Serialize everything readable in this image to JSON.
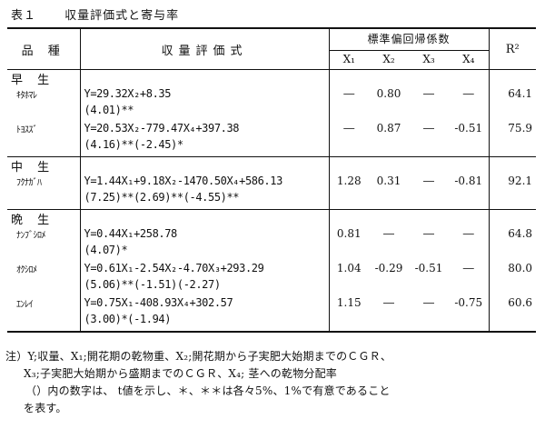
{
  "caption": {
    "number": "表１",
    "title": "収量評価式と寄与率"
  },
  "header": {
    "cultivar": "品 種",
    "equation": "収量評価式",
    "group": "標準偏回帰係数",
    "x_cols": [
      "X₁",
      "X₂",
      "X₃",
      "X₄"
    ],
    "r2": "R²"
  },
  "sections": [
    {
      "label": "早 生",
      "rows": [
        {
          "cultivar": "ｷﾀﾎﾏﾚ",
          "equation": "Y=29.32X₂+8.35",
          "tvals": "(4.01)**",
          "x1": "―",
          "x2": "0.80",
          "x3": "―",
          "x4": "―",
          "r2": "64.1"
        },
        {
          "cultivar": "ﾄﾖｽｽﾞ",
          "equation": "Y=20.53X₂-779.47X₄+397.38",
          "tvals": "(4.16)**(-2.45)*",
          "x1": "―",
          "x2": "0.87",
          "x3": "―",
          "x4": "-0.51",
          "r2": "75.9"
        }
      ]
    },
    {
      "label": "中 生",
      "rows": [
        {
          "cultivar": "ﾌｸﾅｶﾞﾊ",
          "equation": "Y=1.44X₁+9.18X₂-1470.50X₄+586.13",
          "tvals": "(7.25)**(2.69)**(-4.55)**",
          "x1": "1.28",
          "x2": "0.31",
          "x3": "―",
          "x4": "-0.81",
          "r2": "92.1"
        }
      ]
    },
    {
      "label": "晩 生",
      "rows": [
        {
          "cultivar": "ﾅﾝﾌﾞｼﾛﾒ",
          "equation": "Y=0.44X₁+258.78",
          "tvals": "(4.07)*",
          "x1": "0.81",
          "x2": "―",
          "x3": "―",
          "x4": "―",
          "r2": "64.8"
        },
        {
          "cultivar": "ｵｸｼﾛﾒ",
          "equation": "Y=0.61X₁-2.54X₂-4.70X₃+293.29",
          "tvals": "(5.06)**(-1.51)(-2.27)",
          "x1": "1.04",
          "x2": "-0.29",
          "x3": "-0.51",
          "x4": "―",
          "r2": "80.0"
        },
        {
          "cultivar": "ｴﾝﾚｲ",
          "equation": "Y=0.75X₁-408.93X₄+302.57",
          "tvals": "(3.00)*(-1.94)",
          "x1": "1.15",
          "x2": "―",
          "x3": "―",
          "x4": "-0.75",
          "r2": "60.6"
        }
      ]
    }
  ],
  "notes": [
    "注）Y;収量、X₁;開花期の乾物重、X₂;開花期から子実肥大始期までのＣＧＲ、",
    "X₃;子実肥大始期から盛期までのＣＧＲ、X₄; 茎への乾物分配率",
    "（）内の数字は、 t値を示し、＊、＊＊は各々5%、1%で有意であること",
    "を表す。"
  ]
}
